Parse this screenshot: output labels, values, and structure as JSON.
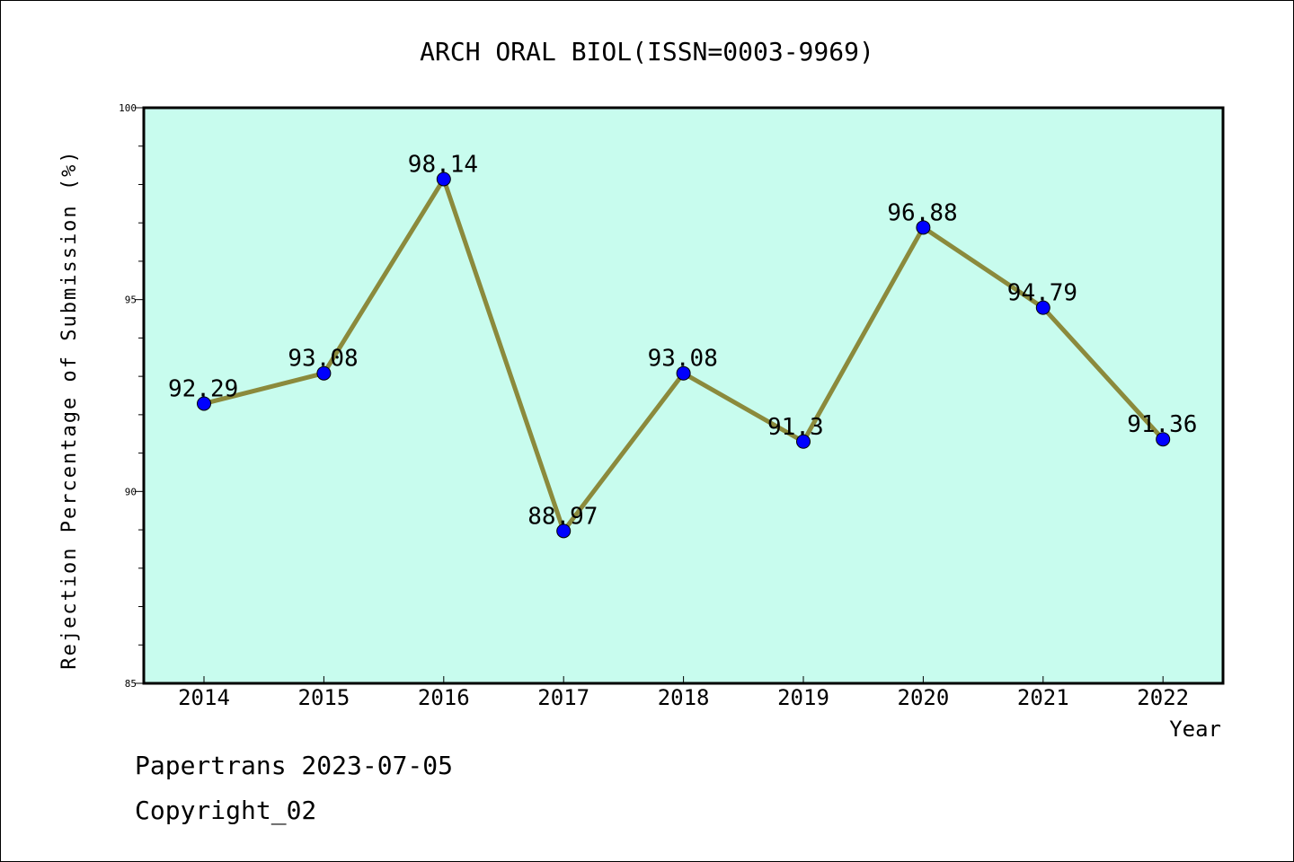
{
  "chart_data": {
    "type": "line",
    "title": "ARCH ORAL BIOL(ISSN=0003-9969)",
    "xlabel": "Year",
    "ylabel": "Rejection Percentage of Submission (%)",
    "categories": [
      "2014",
      "2015",
      "2016",
      "2017",
      "2018",
      "2019",
      "2020",
      "2021",
      "2022"
    ],
    "series": [
      {
        "values": [
          92.29,
          93.08,
          98.14,
          88.97,
          93.08,
          91.3,
          96.88,
          94.79,
          91.36
        ],
        "labels": [
          "92.29",
          "93.08",
          "98.14",
          "88.97",
          "93.08",
          "91.3",
          "96.88",
          "94.79",
          "91.36"
        ]
      }
    ],
    "ylim": [
      85,
      100
    ],
    "yticks": [
      85,
      90,
      95,
      100
    ],
    "grid": false,
    "colors": {
      "plot_background": "#c8fcee",
      "line": "#8b8a3c",
      "marker": "#0000ff"
    }
  },
  "footer": {
    "line1": "Papertrans 2023-07-05",
    "line2": "Copyright_02"
  }
}
